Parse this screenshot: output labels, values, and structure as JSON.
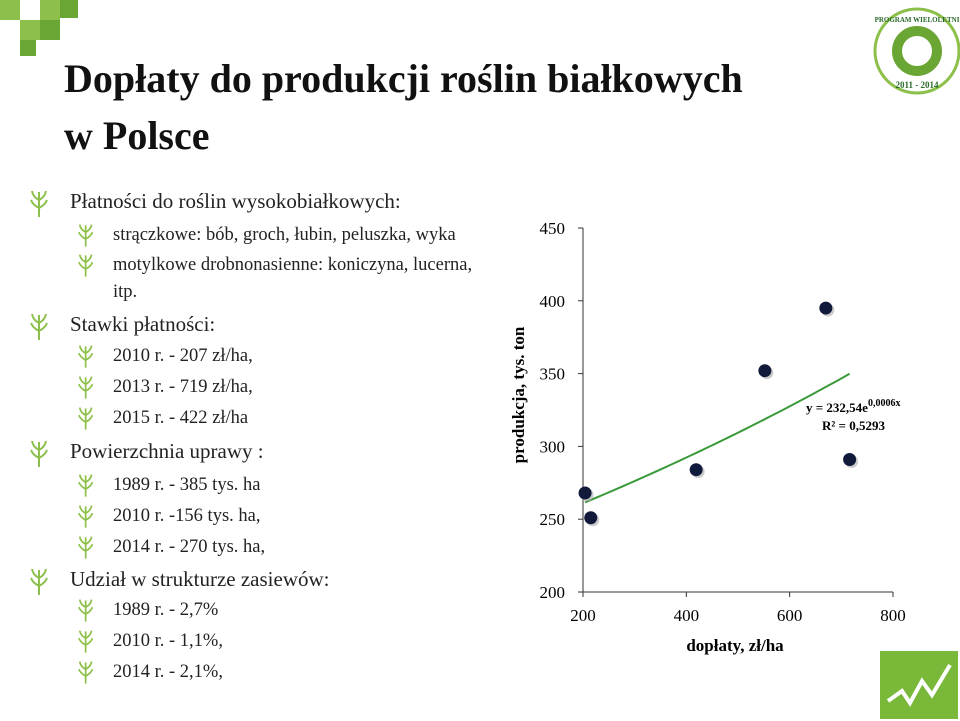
{
  "header": {
    "title": [
      "Dopłaty do produkcji roślin białkowych",
      "w Polsce"
    ]
  },
  "logo": {
    "top": "PROGRAM WIELOLETNI",
    "years": "2011 - 2014"
  },
  "sections": [
    {
      "heading": "Płatności do roślin wysokobiałkowych:",
      "items": [
        "strączkowe: bób, groch, łubin, peluszka, wyka",
        "motylkowe drobnonasienne: koniczyna, lucerna, itp."
      ]
    },
    {
      "heading": "Stawki płatności:",
      "items": [
        "2010 r. - 207 zł/ha,",
        "2013 r. - 719 zł/ha,",
        "2015 r. - 422 zł/ha"
      ]
    },
    {
      "heading": "Powierzchnia uprawy :",
      "items": [
        "1989 r. - 385 tys. ha",
        "2010 r.  -156 tys. ha,",
        "2014 r. - 270 tys. ha,"
      ]
    },
    {
      "heading": "Udział w strukturze zasiewów:",
      "items": [
        "1989 r. - 2,7%",
        "2010 r. - 1,1%,",
        "2014 r. - 2,1%,"
      ]
    }
  ],
  "chart_data": {
    "type": "scatter",
    "x_label": "dopłaty, zł/ha",
    "y_label": "produkcja,  tys. ton",
    "x": [
      204,
      215,
      419,
      552,
      670,
      716
    ],
    "values": [
      268,
      251,
      284,
      352,
      395,
      291
    ],
    "color": "#111a3a",
    "trendline_color": "#3a9a3a",
    "equation": "y = 232,54e",
    "equation_exponent": "0,0006x",
    "r2": "R² = 0,5293",
    "xlim": [
      200,
      800
    ],
    "xticks": [
      200,
      400,
      600,
      800
    ],
    "ylim": [
      200,
      450
    ],
    "yticks": [
      200,
      250,
      300,
      350,
      400,
      450
    ]
  }
}
